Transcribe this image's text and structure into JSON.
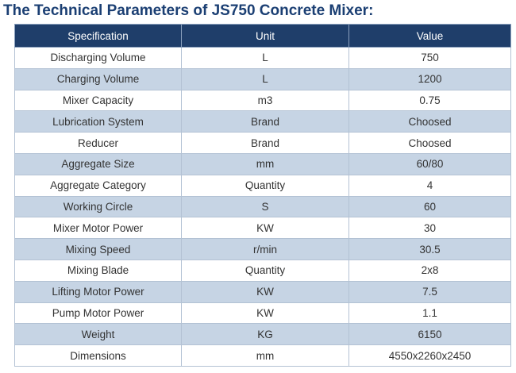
{
  "header": {
    "title": "The Technical Parameters of JS750 Concrete Mixer:"
  },
  "table": {
    "columns": [
      "Specification",
      "Unit",
      "Value"
    ],
    "rows": [
      [
        "Discharging Volume",
        "L",
        "750"
      ],
      [
        "Charging Volume",
        "L",
        "1200"
      ],
      [
        "Mixer Capacity",
        "m3",
        "0.75"
      ],
      [
        "Lubrication System",
        "Brand",
        "Choosed"
      ],
      [
        "Reducer",
        "Brand",
        "Choosed"
      ],
      [
        "Aggregate Size",
        "mm",
        "60/80"
      ],
      [
        "Aggregate Category",
        "Quantity",
        "4"
      ],
      [
        "Working Circle",
        "S",
        "60"
      ],
      [
        "Mixer Motor Power",
        "KW",
        "30"
      ],
      [
        "Mixing Speed",
        "r/min",
        "30.5"
      ],
      [
        "Mixing Blade",
        "Quantity",
        "2x8"
      ],
      [
        "Lifting Motor Power",
        "KW",
        "7.5"
      ],
      [
        "Pump Motor Power",
        "KW",
        "1.1"
      ],
      [
        "Weight",
        "KG",
        "6150"
      ],
      [
        "Dimensions",
        "mm",
        "4550x2260x2450"
      ]
    ]
  }
}
